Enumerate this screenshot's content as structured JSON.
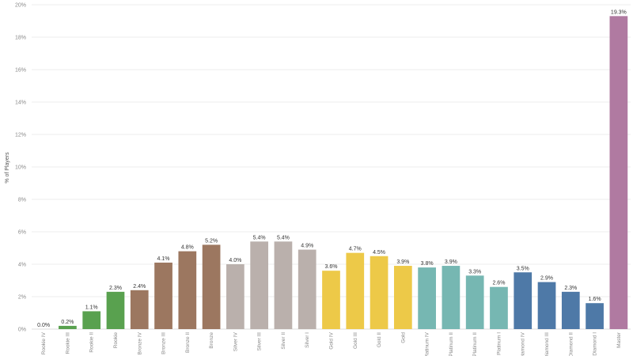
{
  "chart_data": {
    "type": "bar",
    "title": "",
    "xlabel": "",
    "ylabel": "% of Players",
    "ylim": [
      0,
      20
    ],
    "yticks": [
      0,
      2,
      4,
      6,
      8,
      10,
      12,
      14,
      16,
      18,
      20
    ],
    "ytick_labels": [
      "0%",
      "2%",
      "4%",
      "6%",
      "8%",
      "10%",
      "12%",
      "14%",
      "16%",
      "18%",
      "20%"
    ],
    "grid": true,
    "legend": "none",
    "categories": [
      "Rookie IV",
      "Rookie III",
      "Rookie II",
      "Rookie",
      "Bronze IV",
      "Bronze III",
      "Bronze II",
      "Bronze",
      "Silver IV",
      "Silver III",
      "Silver II",
      "Silver I",
      "Gold IV",
      "Gold III",
      "Gold II",
      "Gold",
      "Platinum IV",
      "Platinum II",
      "Platinum II",
      "Platinum I",
      "Diamond IV",
      "Diamond III",
      "Diamond II",
      "Diamond I",
      "Master"
    ],
    "values": [
      0.0,
      0.2,
      1.1,
      2.3,
      2.4,
      4.1,
      4.8,
      5.2,
      4.0,
      5.4,
      5.4,
      4.9,
      3.6,
      4.7,
      4.5,
      3.9,
      3.8,
      3.9,
      3.3,
      2.6,
      3.5,
      2.9,
      2.3,
      1.6,
      19.3
    ],
    "data_labels": [
      "0.0%",
      "0.2%",
      "1.1%",
      "2.3%",
      "2.4%",
      "4.1%",
      "4.8%",
      "5.2%",
      "4.0%",
      "5.4%",
      "5.4%",
      "4.9%",
      "3.6%",
      "4.7%",
      "4.5%",
      "3.9%",
      "3.8%",
      "3.9%",
      "3.3%",
      "2.6%",
      "3.5%",
      "2.9%",
      "2.3%",
      "1.6%",
      "19.3%"
    ],
    "colors": [
      "#59a14f",
      "#59a14f",
      "#59a14f",
      "#59a14f",
      "#9c7760",
      "#9c7760",
      "#9c7760",
      "#9c7760",
      "#bab0ac",
      "#bab0ac",
      "#bab0ac",
      "#bab0ac",
      "#edc948",
      "#edc948",
      "#edc948",
      "#edc948",
      "#76b7b2",
      "#76b7b2",
      "#76b7b2",
      "#76b7b2",
      "#4e79a7",
      "#4e79a7",
      "#4e79a7",
      "#4e79a7",
      "#b07aa1"
    ]
  }
}
